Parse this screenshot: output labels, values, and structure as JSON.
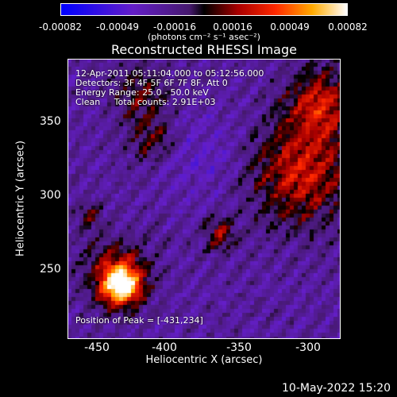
{
  "colorbar": {
    "ticks": [
      "-0.00082",
      "-0.00049",
      "-0.00016",
      "0.00016",
      "0.00049",
      "0.00082"
    ],
    "units": "(photons cm⁻² s⁻¹ asec⁻²)"
  },
  "title": "Reconstructed RHESSI Image",
  "annotations": {
    "time_range": "12-Apr-2011 05:11:04.000 to 05:12:56.000",
    "detectors": "Detectors: 3F 4F 5F 6F 7F 8F, Att 0",
    "energy_range": "Energy Range: 25.0 - 50.0 keV",
    "method_counts": "Clean     Total counts: 2.91E+03",
    "peak": "Position of Peak = [-431,234]"
  },
  "axes": {
    "xlabel": "Heliocentric X (arcsec)",
    "ylabel": "Heliocentric Y (arcsec)",
    "xticks": [
      "-450",
      "-400",
      "-350",
      "-300"
    ],
    "yticks": [
      "350",
      "300",
      "250"
    ]
  },
  "footer_timestamp": "10-May-2022 15:20"
}
